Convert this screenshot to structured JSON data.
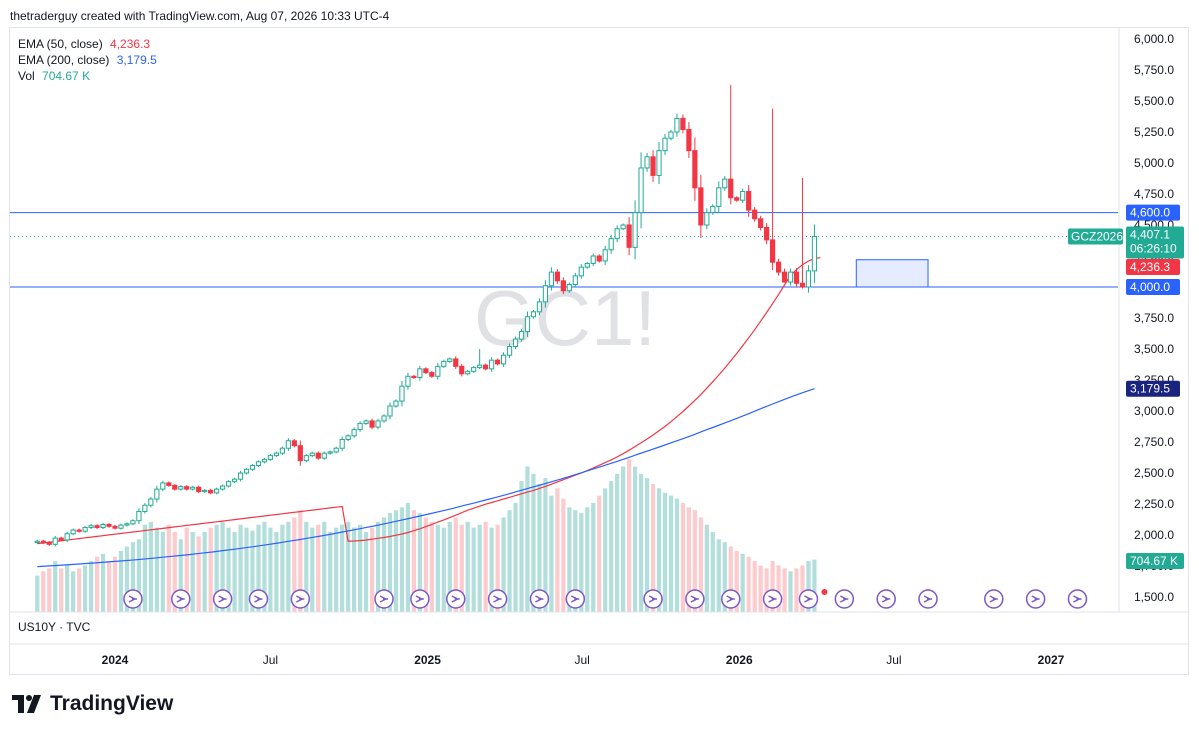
{
  "header": {
    "attribution": "thetraderguy created with TradingView.com, Aug 07, 2026 10:33 UTC-4"
  },
  "watermark": "GC1!",
  "legend": [
    {
      "label": "EMA (50, close)",
      "value": "4,236.3",
      "color": "#f23645"
    },
    {
      "label": "EMA (200, close)",
      "value": "3,179.5",
      "color": "#2962ff"
    },
    {
      "label": "Vol",
      "value": "704.67 K",
      "color": "#22ab94"
    }
  ],
  "subpane": {
    "label": "US10Y · TVC"
  },
  "logo": {
    "text": "TradingView"
  },
  "colors": {
    "up": "#22ab94",
    "down": "#f23645",
    "ema50": "#f23645",
    "ema200": "#2962ff",
    "hline": "#2962ff",
    "vol_up": "#b2dfdb",
    "vol_down": "#fccbcd",
    "event": "#7e57c2"
  },
  "chart_data": {
    "type": "candlestick",
    "symbol": "GCZ2026",
    "interval": "weekly",
    "ylim": [
      1500,
      6000
    ],
    "yticks": [
      "1,500.0",
      "1,750.0",
      "2,000.0",
      "2,250.0",
      "2,500.0",
      "2,750.0",
      "3,000.0",
      "3,250.0",
      "3,500.0",
      "3,750.0",
      "4,000.0",
      "4,250.0",
      "4,500.0",
      "4,750.0",
      "5,000.0",
      "5,250.0",
      "5,500.0",
      "5,750.0",
      "6,000.0"
    ],
    "xticks": [
      {
        "label": "2024",
        "date": "2024-01-01"
      },
      {
        "label": "Jul",
        "date": "2024-07-01"
      },
      {
        "label": "2025",
        "date": "2025-01-01"
      },
      {
        "label": "Jul",
        "date": "2025-07-01"
      },
      {
        "label": "2026",
        "date": "2026-01-01"
      },
      {
        "label": "Jul",
        "date": "2026-07-01"
      },
      {
        "label": "2027",
        "date": "2027-01-01"
      }
    ],
    "horizontal_lines": [
      {
        "value": 4600,
        "label": "4,600.0"
      },
      {
        "value": 4000,
        "label": "4,000.0"
      }
    ],
    "last_price": {
      "value": 4407.1,
      "label": "4,407.1",
      "countdown": "06:26:10",
      "symbol": "GCZ2026"
    },
    "ema50_last": {
      "value": 4236.3,
      "label": "4,236.3"
    },
    "ema200_last": {
      "value": 3179.5,
      "label": "3,179.5"
    },
    "volume_last": {
      "label": "704.67 K"
    },
    "box": {
      "x1": "2026-05-18",
      "x2": "2026-08-10",
      "y1": 4000,
      "y2": 4220
    },
    "first_week": "2023-10-02",
    "closes": [
      1950,
      1940,
      1925,
      1975,
      1960,
      2010,
      2040,
      2030,
      2060,
      2075,
      2060,
      2085,
      2070,
      2055,
      2080,
      2090,
      2115,
      2190,
      2240,
      2290,
      2370,
      2420,
      2400,
      2370,
      2390,
      2370,
      2385,
      2350,
      2360,
      2340,
      2370,
      2395,
      2430,
      2450,
      2500,
      2530,
      2560,
      2590,
      2610,
      2640,
      2660,
      2700,
      2760,
      2720,
      2600,
      2640,
      2660,
      2620,
      2660,
      2670,
      2700,
      2770,
      2800,
      2850,
      2900,
      2920,
      2870,
      2920,
      2960,
      3040,
      3080,
      3200,
      3280,
      3270,
      3340,
      3310,
      3280,
      3360,
      3400,
      3420,
      3360,
      3300,
      3320,
      3350,
      3370,
      3340,
      3410,
      3380,
      3450,
      3520,
      3580,
      3640,
      3760,
      3800,
      3880,
      4010,
      4120,
      4050,
      3970,
      4020,
      4090,
      4160,
      4190,
      4250,
      4210,
      4300,
      4390,
      4470,
      4500,
      4320,
      4600,
      4960,
      5050,
      4900,
      5100,
      5200,
      5250,
      5360,
      5270,
      5100,
      4800,
      4500,
      4600,
      4650,
      4800,
      4870,
      4720,
      4700,
      4770,
      4620,
      4550,
      4480,
      4380,
      4200,
      4120,
      4040,
      4120,
      4030,
      4000,
      4130,
      4407.1
    ],
    "highs": {
      "74": 3500,
      "116": 5630,
      "123": 5440,
      "128": 4880
    },
    "lows": {
      "125": 4040,
      "131": 4150
    },
    "ema50": [
      1950,
      1952,
      1955,
      1960,
      1966,
      1973,
      1980,
      1988,
      1998,
      2008,
      2020,
      2035,
      2050,
      2068,
      2085,
      2104,
      2122,
      2140,
      2160,
      2180,
      2200,
      2216,
      2232,
      2248,
      2262,
      2276,
      2290,
      2304,
      2318,
      2332,
      2346,
      2360,
      2376,
      2392,
      2410,
      2428,
      2446,
      2464,
      2482,
      2500,
      2520,
      2540,
      2562,
      2584,
      2606,
      2630,
      2656,
      2684,
      2714,
      2744,
      2774,
      2806,
      2840,
      2876,
      2914,
      2954,
      2996,
      3040,
      3086,
      3134,
      3184,
      3236,
      3290,
      3346,
      3404,
      3464,
      3526,
      3590,
      3656,
      3724,
      3794,
      3866,
      3940,
      4016,
      4094,
      4140,
      4180,
      4210,
      4230,
      4236.3
    ],
    "ema50_start": 52,
    "ema200": [
      1745,
      1750,
      1755,
      1761,
      1767,
      1773,
      1779,
      1786,
      1793,
      1800,
      1808,
      1816,
      1825,
      1834,
      1843,
      1853,
      1863,
      1874,
      1885,
      1897,
      1909,
      1922,
      1935,
      1949,
      1963,
      1978,
      1993,
      2009,
      2025,
      2042,
      2059,
      2077,
      2095,
      2114,
      2133,
      2153,
      2173,
      2194,
      2215,
      2237,
      2259,
      2282,
      2305,
      2329,
      2353,
      2378,
      2403,
      2429,
      2455,
      2482,
      2509,
      2537,
      2565,
      2594,
      2623,
      2653,
      2683,
      2714,
      2745,
      2777,
      2809,
      2842,
      2875,
      2909,
      2943,
      2978,
      3013,
      3048,
      3083,
      3118,
      3150,
      3179.5
    ],
    "volume": [
      25,
      28,
      30,
      35,
      30,
      32,
      28,
      30,
      32,
      35,
      38,
      40,
      35,
      38,
      42,
      45,
      48,
      50,
      60,
      62,
      58,
      55,
      60,
      55,
      50,
      58,
      55,
      52,
      55,
      58,
      60,
      62,
      58,
      55,
      60,
      58,
      56,
      60,
      62,
      58,
      55,
      60,
      62,
      65,
      70,
      62,
      58,
      60,
      62,
      55,
      58,
      60,
      62,
      58,
      60,
      55,
      58,
      62,
      65,
      68,
      70,
      72,
      75,
      70,
      68,
      65,
      62,
      60,
      58,
      62,
      65,
      60,
      62,
      58,
      60,
      62,
      58,
      60,
      65,
      70,
      75,
      90,
      100,
      95,
      88,
      92,
      80,
      85,
      78,
      72,
      70,
      68,
      72,
      75,
      80,
      85,
      90,
      95,
      100,
      105,
      100,
      95,
      92,
      88,
      85,
      82,
      80,
      78,
      75,
      72,
      70,
      65,
      60,
      55,
      50,
      48,
      45,
      42,
      40,
      38,
      35,
      32,
      30,
      35,
      32,
      30,
      28,
      30,
      32,
      35,
      36
    ]
  }
}
